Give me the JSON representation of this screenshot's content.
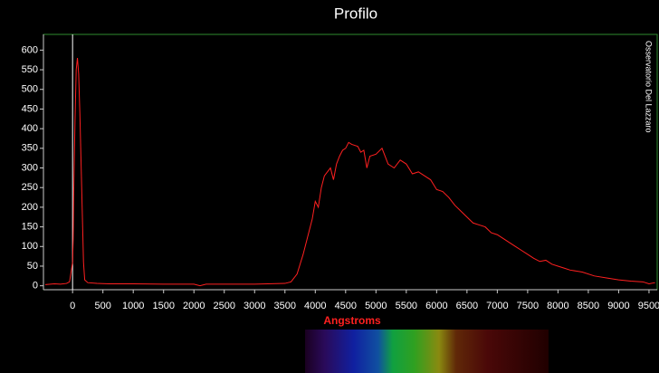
{
  "chart_data": {
    "type": "line",
    "title": "Profilo",
    "x_label": "Angstroms",
    "annotation": "Osservatorio Del Lazzaro",
    "color": "#ff2020",
    "frame_color": "#2e8b2e",
    "marker_x": 0,
    "xlim": [
      -480,
      9635
    ],
    "ylim": [
      -10,
      640
    ],
    "xticks": [
      0,
      500,
      1000,
      1500,
      2000,
      2500,
      3000,
      3500,
      4000,
      4500,
      5000,
      5500,
      6000,
      6500,
      7000,
      7500,
      8000,
      8500,
      9000,
      9500
    ],
    "yticks": [
      0,
      50,
      100,
      150,
      200,
      250,
      300,
      350,
      400,
      450,
      500,
      550,
      600
    ],
    "x": [
      -450,
      -300,
      -200,
      -100,
      -50,
      0,
      10,
      20,
      40,
      60,
      80,
      100,
      120,
      150,
      180,
      200,
      250,
      400,
      600,
      1000,
      1500,
      2000,
      2100,
      2200,
      2500,
      3000,
      3500,
      3600,
      3700,
      3800,
      3900,
      3950,
      4000,
      4050,
      4100,
      4150,
      4200,
      4250,
      4300,
      4350,
      4400,
      4450,
      4500,
      4550,
      4600,
      4700,
      4750,
      4800,
      4850,
      4900,
      5000,
      5100,
      5200,
      5300,
      5400,
      5500,
      5600,
      5700,
      5800,
      5900,
      6000,
      6100,
      6200,
      6300,
      6400,
      6500,
      6600,
      6700,
      6800,
      6900,
      7000,
      7100,
      7200,
      7300,
      7400,
      7500,
      7600,
      7700,
      7800,
      7900,
      8000,
      8100,
      8200,
      8400,
      8600,
      8800,
      9000,
      9200,
      9400,
      9500,
      9600
    ],
    "values": [
      3,
      5,
      4,
      6,
      10,
      60,
      120,
      250,
      420,
      550,
      580,
      540,
      440,
      250,
      60,
      15,
      8,
      6,
      5,
      5,
      4,
      4,
      0,
      4,
      4,
      4,
      6,
      10,
      30,
      80,
      140,
      170,
      215,
      200,
      250,
      280,
      290,
      300,
      270,
      310,
      330,
      345,
      350,
      365,
      360,
      355,
      340,
      345,
      300,
      330,
      335,
      350,
      310,
      300,
      320,
      310,
      285,
      290,
      280,
      270,
      245,
      240,
      225,
      205,
      190,
      175,
      160,
      155,
      150,
      135,
      130,
      120,
      110,
      100,
      90,
      80,
      70,
      62,
      65,
      55,
      50,
      45,
      40,
      35,
      25,
      20,
      15,
      12,
      10,
      5,
      8
    ]
  }
}
